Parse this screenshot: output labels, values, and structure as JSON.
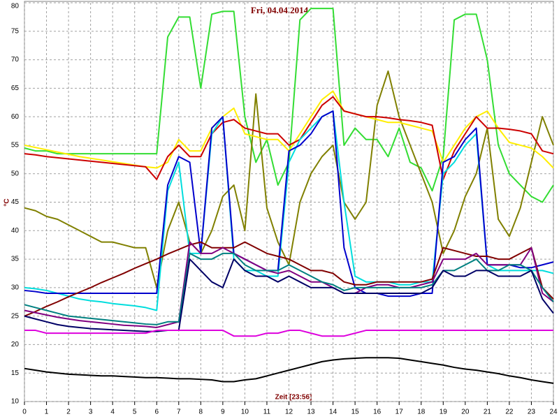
{
  "chart_data": {
    "type": "line",
    "title": "Fri, 04.04.2014",
    "x_label": "Zeit [23:56]",
    "y_label": "°C",
    "x": [
      0,
      0.5,
      1,
      1.5,
      2,
      2.5,
      3,
      3.5,
      4,
      4.5,
      5,
      5.5,
      6,
      6.5,
      7,
      7.5,
      8,
      8.5,
      9,
      9.5,
      10,
      10.5,
      11,
      11.5,
      12,
      12.5,
      13,
      13.5,
      14,
      14.5,
      15,
      15.5,
      16,
      16.5,
      17,
      17.5,
      18,
      18.5,
      19,
      19.5,
      20,
      20.5,
      21,
      21.5,
      22,
      22.5,
      23,
      23.5,
      24
    ],
    "xlim": [
      0,
      24
    ],
    "xticks": [
      0,
      1,
      2,
      3,
      4,
      5,
      6,
      7,
      8,
      9,
      10,
      11,
      12,
      13,
      14,
      15,
      16,
      17,
      18,
      19,
      20,
      21,
      22,
      23,
      24
    ],
    "ylim": [
      10,
      80
    ],
    "yticks": [
      10,
      15,
      20,
      25,
      30,
      35,
      40,
      45,
      50,
      55,
      60,
      65,
      70,
      75,
      80
    ],
    "grid": true,
    "series": [
      {
        "color": "#33dd33",
        "values": [
          54.5,
          54,
          54,
          53.5,
          53.5,
          53.5,
          53.5,
          53.5,
          53.5,
          53.5,
          53.5,
          53.5,
          53.5,
          74,
          77.5,
          77.5,
          65,
          78,
          78.5,
          78.5,
          60,
          52,
          56,
          48,
          52,
          77,
          79,
          79,
          79,
          55,
          58,
          56,
          56,
          53,
          58,
          52,
          51,
          47,
          53,
          77,
          78,
          78,
          70,
          55,
          50,
          48,
          46,
          45,
          48
        ]
      },
      {
        "color": "#808000",
        "values": [
          44,
          43.5,
          42.5,
          42,
          41,
          40,
          39,
          38,
          38,
          37.5,
          37,
          37,
          30,
          40,
          45,
          38,
          36,
          40,
          46,
          48,
          40,
          64,
          44,
          38,
          34,
          45,
          50,
          53,
          55,
          45,
          42,
          45,
          62,
          68,
          60,
          55,
          50,
          45,
          36,
          40,
          46,
          50,
          58,
          42,
          39,
          44,
          52,
          60,
          55
        ]
      },
      {
        "color": "#ffee00",
        "values": [
          55,
          54.6,
          54.2,
          53.8,
          53.4,
          53,
          52.7,
          52.4,
          52.1,
          51.8,
          51.5,
          51.2,
          51,
          52,
          56,
          54,
          54,
          58,
          60,
          61.5,
          57,
          56.5,
          56,
          56,
          54,
          57,
          60,
          63,
          64.5,
          61,
          60.5,
          60,
          59.5,
          59,
          59,
          58.5,
          58,
          57.5,
          52,
          55,
          58,
          60,
          61,
          58,
          55.5,
          55,
          54.5,
          53,
          51
        ]
      },
      {
        "color": "#cc0000",
        "values": [
          53.5,
          53.3,
          53,
          52.8,
          52.6,
          52.4,
          52.2,
          52,
          51.8,
          51.6,
          51.4,
          51.2,
          49,
          53,
          55,
          53,
          53,
          57,
          59,
          59.5,
          58,
          57.5,
          57,
          57,
          55,
          56,
          59,
          62,
          63.5,
          61,
          60.5,
          60,
          60,
          59.8,
          59.5,
          59.3,
          59,
          58.5,
          49,
          54,
          57,
          60,
          58,
          58,
          57.8,
          57.5,
          57,
          54,
          53.5
        ]
      },
      {
        "color": "#00dddd",
        "values": [
          30,
          29.8,
          29.5,
          29,
          28.5,
          28,
          27.7,
          27.5,
          27.2,
          27,
          26.8,
          26.5,
          26,
          47,
          52,
          36,
          36,
          57,
          60,
          35,
          33,
          33,
          32,
          32,
          52,
          56,
          58,
          60,
          61,
          45,
          32,
          31,
          31,
          31,
          30.5,
          30.5,
          31,
          31,
          50,
          52,
          55,
          57,
          34,
          33,
          33,
          33,
          33,
          33,
          32.5
        ]
      },
      {
        "color": "#0000cc",
        "values": [
          29.5,
          29.3,
          29,
          29,
          29,
          29,
          29,
          29,
          29,
          29,
          29,
          29,
          29,
          48,
          53,
          52,
          36,
          58,
          60,
          36,
          35,
          34,
          33,
          33,
          54,
          55,
          57,
          60,
          61,
          37,
          30,
          29,
          29,
          28.5,
          28.5,
          28.5,
          29,
          29,
          52,
          53,
          56,
          58,
          34,
          34,
          34,
          33.5,
          33.5,
          34,
          34.5
        ]
      },
      {
        "color": "#800000",
        "values": [
          25,
          25.8,
          26.7,
          27.5,
          28.4,
          29.2,
          30,
          30.9,
          31.7,
          32.5,
          33.4,
          34.2,
          35,
          35.9,
          36.7,
          37.5,
          38,
          37,
          37,
          37,
          38,
          37,
          36,
          35.5,
          35,
          34,
          33,
          33,
          32.5,
          31,
          30.5,
          30.5,
          31,
          31,
          31,
          31,
          31,
          31.5,
          37,
          36.5,
          36,
          35.5,
          35.5,
          35,
          35,
          36,
          37,
          30,
          28
        ]
      },
      {
        "color": "#800080",
        "values": [
          26,
          25.6,
          25.2,
          24.8,
          24.5,
          24.2,
          24,
          23.8,
          23.6,
          23.4,
          23.3,
          23.2,
          23,
          23.5,
          24,
          38,
          36,
          36,
          37,
          36,
          35,
          34,
          33,
          32.5,
          33,
          32,
          31,
          31,
          30,
          29,
          29,
          30,
          30.5,
          30.5,
          30,
          30,
          30.5,
          31,
          35,
          35,
          35,
          36,
          34,
          34,
          34,
          34,
          37,
          29,
          27.5
        ]
      },
      {
        "color": "#008080",
        "values": [
          27,
          26.5,
          26,
          25.5,
          25,
          24.8,
          24.6,
          24.4,
          24.2,
          24,
          23.8,
          23.6,
          23.5,
          24,
          24,
          36,
          35,
          35,
          36,
          36,
          34,
          33,
          33,
          33,
          34,
          33,
          32,
          31,
          30.5,
          29.5,
          30,
          30,
          30,
          30,
          30,
          30,
          30,
          30.5,
          33,
          33,
          34,
          35,
          33,
          33,
          34,
          34,
          33,
          30,
          27.5
        ]
      },
      {
        "color": "#000066",
        "values": [
          25,
          24.5,
          24,
          23.5,
          23.2,
          23,
          22.8,
          22.7,
          22.6,
          22.5,
          22.4,
          22.3,
          22.3,
          22.5,
          22.5,
          35,
          33,
          31,
          30,
          35,
          33,
          32,
          32,
          31,
          32,
          31,
          30,
          30,
          30,
          29,
          29,
          29,
          29,
          29,
          29,
          29,
          29,
          30,
          33,
          32,
          32,
          33,
          33,
          32,
          32,
          32,
          33,
          28,
          25.5
        ]
      },
      {
        "color": "#dd00dd",
        "values": [
          22.5,
          22.5,
          22,
          22,
          22,
          22,
          22,
          22,
          22,
          22,
          22,
          22,
          22.5,
          22.5,
          22.5,
          22.5,
          22.5,
          22.5,
          22.5,
          21.5,
          21.5,
          21.5,
          22,
          22,
          22.5,
          22.5,
          22,
          21.5,
          21.5,
          21.5,
          22,
          22.5,
          22.5,
          22.5,
          22.5,
          22.5,
          22.5,
          22.5,
          22.5,
          22.5,
          22.5,
          22.5,
          22.5,
          22.5,
          22.5,
          22.5,
          22.5,
          22.5,
          22.5
        ]
      },
      {
        "color": "#000000",
        "values": [
          15.8,
          15.5,
          15.2,
          15,
          14.8,
          14.7,
          14.6,
          14.5,
          14.5,
          14.4,
          14.3,
          14.2,
          14.2,
          14.1,
          14,
          14,
          13.9,
          13.8,
          13.5,
          13.5,
          13.8,
          14,
          14.5,
          15,
          15.5,
          16,
          16.5,
          17,
          17.3,
          17.5,
          17.6,
          17.7,
          17.7,
          17.7,
          17.6,
          17.3,
          17,
          16.7,
          16.4,
          16,
          15.7,
          15.5,
          15.2,
          14.9,
          14.5,
          14.2,
          13.8,
          13.5,
          13.2
        ]
      }
    ]
  }
}
